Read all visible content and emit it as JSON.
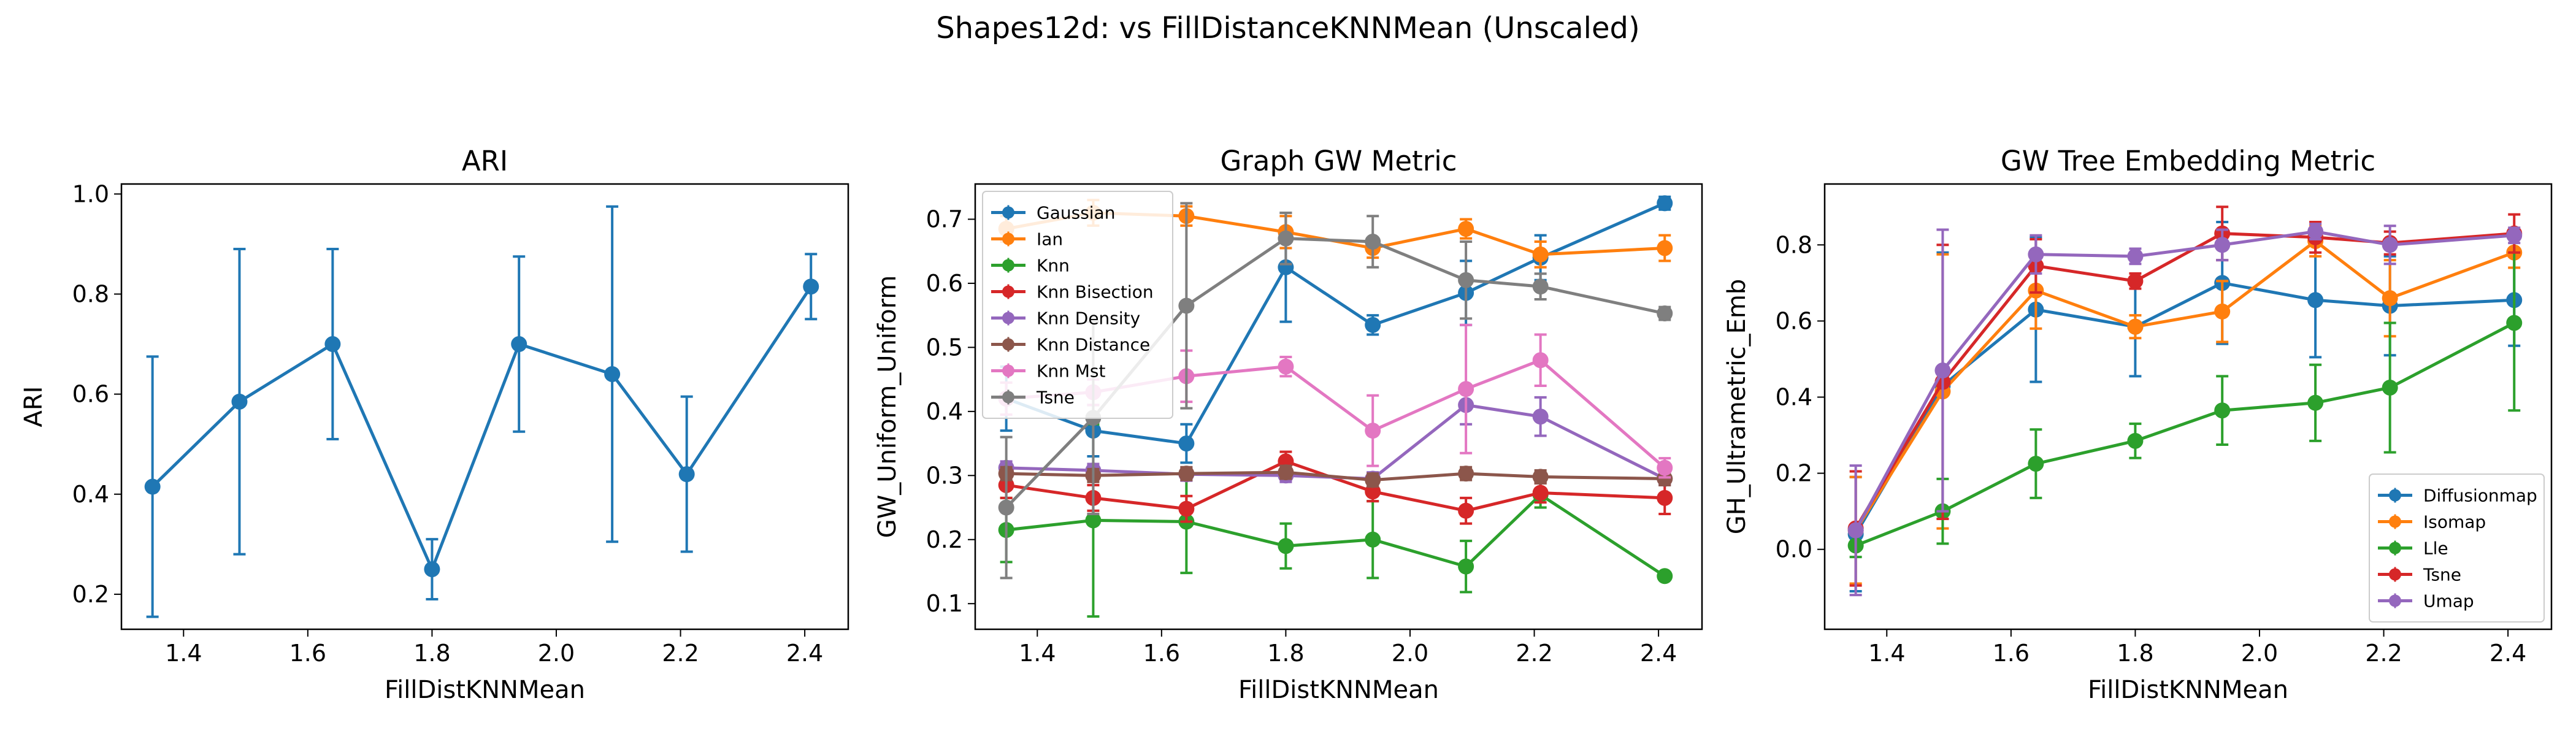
{
  "figure": {
    "suptitle": "Shapes12d: vs FillDistanceKNNMean (Unscaled)"
  },
  "chart_data": [
    {
      "type": "line",
      "title": "ARI",
      "xlabel": "FillDistKNNMean",
      "ylabel": "ARI",
      "xlim": [
        1.3,
        2.47
      ],
      "ylim": [
        0.13,
        1.02
      ],
      "xticks": [
        1.4,
        1.6,
        1.8,
        2.0,
        2.2,
        2.4
      ],
      "yticks": [
        0.2,
        0.4,
        0.6,
        0.8,
        1.0
      ],
      "legend": null,
      "x": [
        1.35,
        1.49,
        1.64,
        1.8,
        1.94,
        2.09,
        2.21,
        2.41
      ],
      "series": [
        {
          "color": "#1f77b4",
          "values": [
            0.415,
            0.585,
            0.7,
            0.25,
            0.7,
            0.64,
            0.44,
            0.815
          ],
          "errors": [
            0.26,
            0.305,
            0.19,
            0.06,
            0.175,
            0.335,
            0.155,
            0.065
          ]
        }
      ]
    },
    {
      "type": "line",
      "title": "Graph GW Metric",
      "xlabel": "FillDistKNNMean",
      "ylabel": "GW_Uniform_Uniform",
      "xlim": [
        1.3,
        2.47
      ],
      "ylim": [
        0.06,
        0.755
      ],
      "xticks": [
        1.4,
        1.6,
        1.8,
        2.0,
        2.2,
        2.4
      ],
      "yticks": [
        0.1,
        0.2,
        0.3,
        0.4,
        0.5,
        0.6,
        0.7
      ],
      "legend": "upper-left",
      "x": [
        1.35,
        1.49,
        1.64,
        1.8,
        1.94,
        2.09,
        2.21,
        2.41
      ],
      "series": [
        {
          "name": "Gaussian",
          "color": "#1f77b4",
          "values": [
            0.42,
            0.37,
            0.35,
            0.625,
            0.535,
            0.585,
            0.64,
            0.725
          ],
          "errors": [
            0.05,
            0.04,
            0.03,
            0.085,
            0.015,
            0.05,
            0.035,
            0.01
          ]
        },
        {
          "name": "Ian",
          "color": "#ff7f0e",
          "values": [
            0.685,
            0.71,
            0.705,
            0.68,
            0.655,
            0.685,
            0.645,
            0.655
          ],
          "errors": [
            0.02,
            0.02,
            0.015,
            0.025,
            0.015,
            0.015,
            0.02,
            0.02
          ]
        },
        {
          "name": "Knn",
          "color": "#2ca02c",
          "values": [
            0.215,
            0.23,
            0.228,
            0.19,
            0.2,
            0.158,
            0.27,
            0.143
          ],
          "errors": [
            0.05,
            0.15,
            0.08,
            0.035,
            0.06,
            0.04,
            0.02,
            0.005
          ]
        },
        {
          "name": "Knn Bisection",
          "color": "#d62728",
          "values": [
            0.285,
            0.265,
            0.248,
            0.322,
            0.275,
            0.245,
            0.273,
            0.265
          ],
          "errors": [
            0.02,
            0.02,
            0.02,
            0.015,
            0.015,
            0.02,
            0.015,
            0.025
          ]
        },
        {
          "name": "Knn Density",
          "color": "#9467bd",
          "values": [
            0.312,
            0.308,
            0.302,
            0.3,
            0.295,
            0.41,
            0.392,
            0.295
          ],
          "errors": [
            0.01,
            0.01,
            0.01,
            0.01,
            0.01,
            0.03,
            0.03,
            0.01
          ]
        },
        {
          "name": "Knn Distance",
          "color": "#8c564b",
          "values": [
            0.303,
            0.3,
            0.303,
            0.305,
            0.293,
            0.303,
            0.298,
            0.295
          ],
          "errors": [
            0.01,
            0.01,
            0.01,
            0.01,
            0.01,
            0.01,
            0.01,
            0.01
          ]
        },
        {
          "name": "Knn Mst",
          "color": "#e377c2",
          "values": [
            0.42,
            0.43,
            0.455,
            0.47,
            0.37,
            0.435,
            0.48,
            0.312
          ],
          "errors": [
            0.025,
            0.02,
            0.04,
            0.015,
            0.055,
            0.1,
            0.04,
            0.015
          ]
        },
        {
          "name": "Tsne",
          "color": "#7f7f7f",
          "values": [
            0.25,
            0.39,
            0.565,
            0.67,
            0.665,
            0.605,
            0.595,
            0.553
          ],
          "errors": [
            0.11,
            0.15,
            0.16,
            0.04,
            0.04,
            0.06,
            0.02,
            0.01
          ]
        }
      ]
    },
    {
      "type": "line",
      "title": "GW Tree Embedding Metric",
      "xlabel": "FillDistKNNMean",
      "ylabel": "GH_Ultrametric_Emb",
      "xlim": [
        1.3,
        2.47
      ],
      "ylim": [
        -0.21,
        0.96
      ],
      "xticks": [
        1.4,
        1.6,
        1.8,
        2.0,
        2.2,
        2.4
      ],
      "yticks": [
        0.0,
        0.2,
        0.4,
        0.6,
        0.8
      ],
      "legend": "lower-right",
      "x": [
        1.35,
        1.49,
        1.64,
        1.8,
        1.94,
        2.09,
        2.21,
        2.41
      ],
      "series": [
        {
          "name": "Diffusionmap",
          "color": "#1f77b4",
          "values": [
            0.04,
            0.43,
            0.63,
            0.585,
            0.7,
            0.655,
            0.64,
            0.655
          ],
          "errors": [
            0.15,
            0.35,
            0.19,
            0.13,
            0.16,
            0.15,
            0.13,
            0.12
          ]
        },
        {
          "name": "Isomap",
          "color": "#ff7f0e",
          "values": [
            0.05,
            0.415,
            0.68,
            0.585,
            0.625,
            0.81,
            0.66,
            0.78
          ],
          "errors": [
            0.14,
            0.36,
            0.1,
            0.03,
            0.08,
            0.04,
            0.1,
            0.04
          ]
        },
        {
          "name": "Lle",
          "color": "#2ca02c",
          "values": [
            0.01,
            0.1,
            0.225,
            0.285,
            0.365,
            0.385,
            0.425,
            0.595
          ],
          "errors": [
            0.03,
            0.085,
            0.09,
            0.045,
            0.09,
            0.1,
            0.17,
            0.23
          ]
        },
        {
          "name": "Tsne",
          "color": "#d62728",
          "values": [
            0.055,
            0.44,
            0.745,
            0.705,
            0.83,
            0.82,
            0.805,
            0.83
          ],
          "errors": [
            0.15,
            0.36,
            0.07,
            0.02,
            0.07,
            0.04,
            0.03,
            0.05
          ]
        },
        {
          "name": "Umap",
          "color": "#9467bd",
          "values": [
            0.05,
            0.47,
            0.775,
            0.77,
            0.8,
            0.835,
            0.8,
            0.825
          ],
          "errors": [
            0.17,
            0.37,
            0.05,
            0.02,
            0.04,
            0.02,
            0.05,
            0.02
          ]
        }
      ]
    }
  ]
}
